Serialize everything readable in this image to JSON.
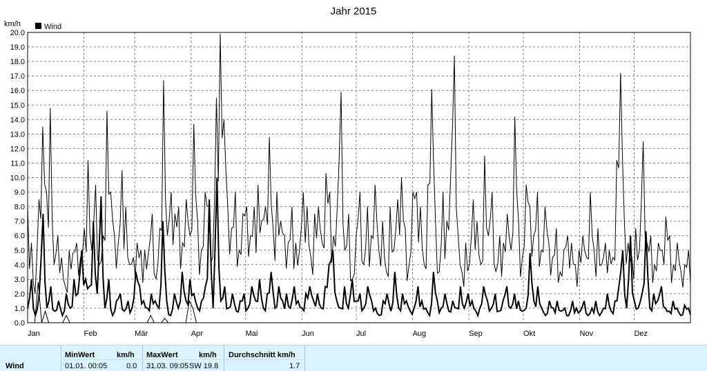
{
  "chart_data": {
    "type": "line",
    "title": "Jahr 2015",
    "ylabel": "km/h",
    "ylim": [
      0,
      20
    ],
    "yticks": [
      "0.0",
      "1.0",
      "2.0",
      "3.0",
      "4.0",
      "5.0",
      "6.0",
      "7.0",
      "8.0",
      "9.0",
      "10.0",
      "11.0",
      "12.0",
      "13.0",
      "14.0",
      "15.0",
      "16.0",
      "17.0",
      "18.0",
      "19.0",
      "20.0"
    ],
    "months": [
      "Jan",
      "Feb",
      "Mär",
      "Apr",
      "Mai",
      "Jun",
      "Jul",
      "Aug",
      "Sep",
      "Okt",
      "Nov",
      "Dez"
    ],
    "grid": true,
    "legend_position": "top-left",
    "series": [
      {
        "name": "Wind",
        "style": "max (thin)",
        "color": "#000000",
        "values_by_day_approx": [
          8.0,
          5.5,
          2.0,
          8.5,
          13.5,
          9.0,
          14.8,
          4.0,
          6.0,
          4.5,
          2.5,
          5.0,
          4.8,
          5.5,
          4.5,
          6.5,
          11.2,
          5.0,
          9.5,
          4.0,
          6.0,
          14.6,
          9.0,
          6.0,
          5.5,
          10.5,
          8.0,
          4.0,
          4.5,
          5.5,
          5.0,
          5.0,
          4.8,
          7.5,
          3.0,
          6.5,
          16.7,
          6.0,
          9.0,
          7.5,
          8.0,
          5.5,
          8.5,
          6.0,
          13.7,
          7.0,
          5.0,
          9.0,
          8.0,
          4.5,
          15.5,
          19.9,
          14.0,
          8.0,
          6.5,
          9.0,
          5.0,
          7.5,
          8.0,
          6.0,
          8.0,
          9.5,
          7.0,
          8.0,
          12.8,
          6.5,
          9.0,
          7.0,
          6.0,
          5.5,
          8.0,
          5.5,
          5.0,
          9.0,
          8.0,
          4.5,
          7.5,
          8.0,
          5.5,
          10.3,
          9.0,
          6.0,
          8.0,
          15.9,
          5.0,
          7.5,
          3.0,
          6.0,
          9.0,
          4.0,
          8.0,
          6.0,
          9.5,
          5.0,
          7.0,
          3.5,
          8.0,
          5.0,
          8.5,
          10.0,
          6.5,
          4.0,
          9.0,
          9.0,
          8.0,
          4.0,
          9.5,
          16.1,
          7.0,
          3.5,
          9.0,
          7.0,
          10.0,
          18.4,
          6.0,
          3.5,
          5.5,
          4.0,
          8.5,
          7.0,
          4.0,
          11.5,
          6.0,
          9.0,
          3.5,
          6.0,
          5.5,
          7.5,
          5.0,
          14.2,
          7.0,
          4.5,
          9.5,
          8.0,
          6.0,
          9.0,
          5.0,
          8.0,
          5.5,
          4.5,
          6.5,
          3.5,
          5.0,
          6.0,
          5.5,
          4.0,
          5.0,
          6.0,
          4.5,
          9.0,
          5.0,
          6.5,
          4.0,
          5.5,
          5.0,
          4.5,
          11.2,
          17.2,
          7.0,
          5.5,
          4.5,
          6.5,
          5.0,
          12.5,
          5.5,
          6.0,
          4.0,
          5.5,
          5.0,
          7.3,
          6.0,
          4.0,
          5.5,
          3.5,
          4.0,
          5.0
        ]
      },
      {
        "name": "Wind",
        "style": "mean (thick)",
        "color": "#000000",
        "values_by_day_approx": [
          1.0,
          3.0,
          0.5,
          2.0,
          7.5,
          1.0,
          2.5,
          0.8,
          1.5,
          0.5,
          2.0,
          1.0,
          3.0,
          2.0,
          5.0,
          3.0,
          2.5,
          7.0,
          2.0,
          8.7,
          1.0,
          3.0,
          0.5,
          1.5,
          2.0,
          0.8,
          1.5,
          1.0,
          3.5,
          2.5,
          1.5,
          1.0,
          2.0,
          1.5,
          1.0,
          7.0,
          1.5,
          0.5,
          2.0,
          1.0,
          3.5,
          1.5,
          3.0,
          2.0,
          1.0,
          1.5,
          2.5,
          8.5,
          1.0,
          10.0,
          1.5,
          2.5,
          1.0,
          2.0,
          0.8,
          1.5,
          2.0,
          1.0,
          2.5,
          1.5,
          3.0,
          1.0,
          2.0,
          3.5,
          1.0,
          2.5,
          1.5,
          2.0,
          1.0,
          2.5,
          1.5,
          1.0,
          2.0,
          2.5,
          1.5,
          2.0,
          1.0,
          2.5,
          4.0,
          5.0,
          1.5,
          1.0,
          2.5,
          1.0,
          3.0,
          1.5,
          2.0,
          1.0,
          2.5,
          1.5,
          1.0,
          0.5,
          1.5,
          2.0,
          0.8,
          3.5,
          1.0,
          2.0,
          1.5,
          0.8,
          1.0,
          2.5,
          1.5,
          1.0,
          0.5,
          3.5,
          1.5,
          1.0,
          2.0,
          0.8,
          1.5,
          1.0,
          2.5,
          1.0,
          2.0,
          1.5,
          0.8,
          1.0,
          2.5,
          1.5,
          1.0,
          2.0,
          0.8,
          1.5,
          2.5,
          1.0,
          2.0,
          1.5,
          0.8,
          1.0,
          4.8,
          1.5,
          2.5,
          1.0,
          0.5,
          1.5,
          1.0,
          1.5,
          0.8,
          1.0,
          0.5,
          1.5,
          1.0,
          0.8,
          1.5,
          0.5,
          1.0,
          1.5,
          0.5,
          1.0,
          2.0,
          0.8,
          1.5,
          2.5,
          5.0,
          1.0,
          6.0,
          1.5,
          1.0,
          2.0,
          6.3,
          1.0,
          2.0,
          1.5,
          2.5,
          1.0,
          0.8,
          1.5,
          1.0,
          0.5,
          1.2,
          1.0
        ]
      },
      {
        "name": "Wind",
        "style": "min (thin)",
        "color": "#000000",
        "values_by_day_approx": [
          0,
          0,
          0,
          2.8,
          0,
          0.8,
          0,
          0,
          0,
          0,
          0,
          0.5,
          0,
          0,
          0,
          0,
          0,
          0,
          0,
          0,
          0,
          0,
          0,
          0,
          0,
          0,
          0,
          0,
          0,
          0,
          0,
          0,
          0,
          0,
          0,
          0.5,
          0,
          0,
          0,
          0.3,
          0,
          0,
          0,
          0,
          0,
          0,
          1.5,
          1.0,
          0,
          0,
          0,
          0,
          0,
          0,
          0,
          0,
          0,
          0,
          0,
          0,
          0,
          0,
          0,
          0,
          0,
          0,
          0,
          0,
          0,
          0,
          0,
          0,
          0,
          0,
          0,
          0,
          0,
          0,
          0,
          0,
          0,
          0,
          0,
          0,
          0,
          0,
          0,
          0,
          0,
          0,
          0,
          0,
          0,
          0,
          0,
          0,
          0,
          0,
          0,
          0,
          0,
          0,
          0,
          0,
          0,
          0,
          0,
          0,
          0,
          0,
          0,
          0,
          0,
          0,
          0,
          0,
          0,
          0,
          0,
          0,
          0,
          0,
          0,
          0,
          0,
          0,
          0,
          0,
          0,
          0,
          0,
          0,
          0,
          0,
          0,
          0,
          0,
          0,
          0,
          0,
          0,
          0,
          0,
          0,
          0,
          0,
          0,
          0,
          0,
          0,
          0,
          0,
          0,
          0,
          0,
          0,
          0,
          0,
          0,
          0,
          0,
          0,
          0,
          0,
          0,
          0,
          0,
          0,
          0,
          0,
          0,
          0,
          0,
          0,
          0,
          0,
          0,
          0,
          0,
          0,
          0,
          0,
          0,
          0,
          0,
          0,
          0,
          0,
          0
        ]
      }
    ]
  },
  "stats": {
    "row_label": "Wind",
    "min_header": "MinWert",
    "min_unit": "km/h",
    "min_date": "01.01.  00:05",
    "min_value": "0.0",
    "max_header": "MaxWert",
    "max_unit": "km/h",
    "max_date": "31.03.  09:05",
    "max_value": "SW 19.8",
    "avg_header": "Durchschnitt km/h",
    "avg_value": "1.7"
  }
}
